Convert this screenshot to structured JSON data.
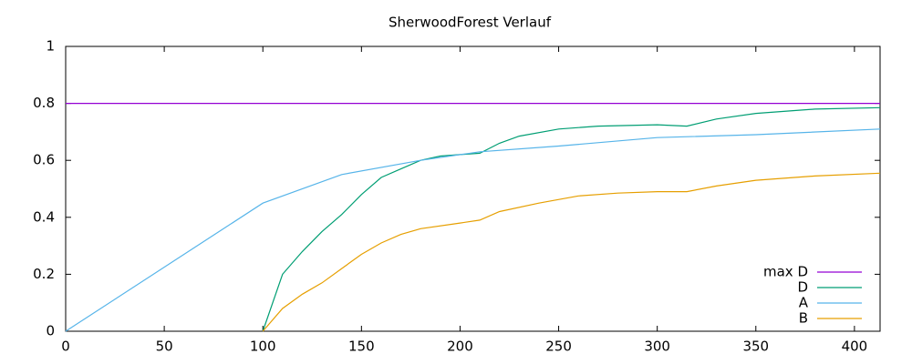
{
  "chart_data": {
    "type": "line",
    "title": "SherwoodForest Verlauf",
    "xlim": [
      0,
      413
    ],
    "xticks": [
      0,
      50,
      100,
      150,
      200,
      250,
      300,
      350,
      400
    ],
    "ylim": [
      0,
      1
    ],
    "yticks": [
      0,
      0.2,
      0.4,
      0.6,
      0.8,
      1
    ],
    "grid": false,
    "legend": "bottom-right",
    "series": [
      {
        "name": "max D",
        "color": "#9400d3",
        "x": [
          0,
          413
        ],
        "values": [
          0.8,
          0.8
        ]
      },
      {
        "name": "D",
        "color": "#009e73",
        "x": [
          100,
          110,
          120,
          130,
          140,
          150,
          160,
          170,
          180,
          190,
          200,
          210,
          220,
          230,
          250,
          270,
          300,
          315,
          330,
          350,
          380,
          413
        ],
        "values": [
          0,
          0.2,
          0.28,
          0.35,
          0.41,
          0.48,
          0.54,
          0.57,
          0.6,
          0.615,
          0.62,
          0.625,
          0.66,
          0.685,
          0.71,
          0.72,
          0.725,
          0.72,
          0.745,
          0.765,
          0.78,
          0.785
        ]
      },
      {
        "name": "A",
        "color": "#56b4e9",
        "x": [
          0,
          100,
          140,
          180,
          210,
          250,
          300,
          350,
          413
        ],
        "values": [
          0,
          0.45,
          0.55,
          0.6,
          0.63,
          0.65,
          0.68,
          0.69,
          0.71
        ]
      },
      {
        "name": "B",
        "color": "#e69f00",
        "x": [
          100,
          110,
          120,
          130,
          140,
          150,
          160,
          170,
          180,
          200,
          210,
          220,
          240,
          260,
          280,
          300,
          315,
          330,
          350,
          380,
          413
        ],
        "values": [
          0,
          0.08,
          0.13,
          0.17,
          0.22,
          0.27,
          0.31,
          0.34,
          0.36,
          0.38,
          0.39,
          0.42,
          0.45,
          0.475,
          0.485,
          0.49,
          0.49,
          0.51,
          0.53,
          0.545,
          0.555
        ]
      }
    ]
  }
}
